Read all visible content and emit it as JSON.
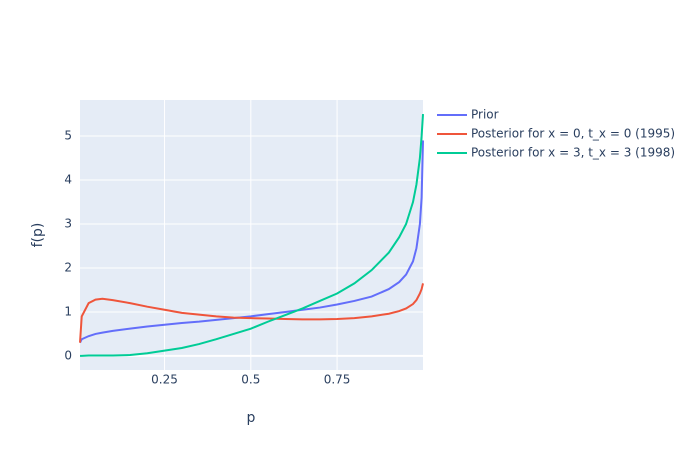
{
  "chart_data": {
    "type": "line",
    "x_label": "p",
    "y_label": "f(p)",
    "x": [
      0.005,
      0.01,
      0.03,
      0.05,
      0.07,
      0.1,
      0.15,
      0.2,
      0.25,
      0.3,
      0.35,
      0.4,
      0.45,
      0.5,
      0.55,
      0.6,
      0.65,
      0.7,
      0.75,
      0.8,
      0.85,
      0.9,
      0.93,
      0.95,
      0.97,
      0.98,
      0.99,
      0.995,
      0.999
    ],
    "series": [
      {
        "name": "Prior",
        "color": "#636efa",
        "values": [
          0.3,
          0.38,
          0.45,
          0.5,
          0.53,
          0.57,
          0.62,
          0.67,
          0.71,
          0.75,
          0.78,
          0.82,
          0.86,
          0.9,
          0.95,
          1.0,
          1.05,
          1.1,
          1.17,
          1.25,
          1.35,
          1.52,
          1.68,
          1.85,
          2.15,
          2.45,
          3.0,
          3.6,
          4.9
        ]
      },
      {
        "name": "Posterior for x = 0, t_x = 0 (1995)",
        "color": "#ef553b",
        "values": [
          0.3,
          0.9,
          1.2,
          1.28,
          1.3,
          1.27,
          1.2,
          1.12,
          1.05,
          0.98,
          0.94,
          0.9,
          0.87,
          0.86,
          0.85,
          0.84,
          0.83,
          0.83,
          0.84,
          0.86,
          0.9,
          0.96,
          1.02,
          1.08,
          1.18,
          1.27,
          1.42,
          1.52,
          1.65
        ]
      },
      {
        "name": "Posterior for x = 3, t_x = 3 (1998)",
        "color": "#00cc96",
        "values": [
          0,
          0,
          0.01,
          0.01,
          0.01,
          0.01,
          0.02,
          0.06,
          0.12,
          0.18,
          0.27,
          0.38,
          0.5,
          0.62,
          0.78,
          0.93,
          1.08,
          1.25,
          1.42,
          1.65,
          1.95,
          2.35,
          2.7,
          3.0,
          3.5,
          3.9,
          4.5,
          5.0,
          5.5
        ]
      }
    ],
    "xlim": [
      0.005,
      0.999
    ],
    "ylim": [
      -0.32,
      5.82
    ],
    "xticks": [
      0.25,
      0.5,
      0.75
    ],
    "yticks": [
      0,
      1,
      2,
      3,
      4,
      5
    ],
    "grid": true,
    "legend": "right"
  }
}
